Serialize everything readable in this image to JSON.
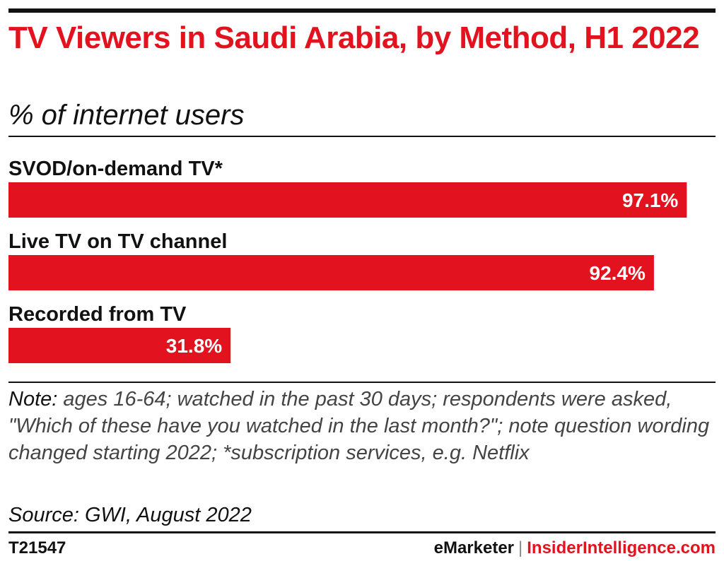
{
  "header": {
    "title": "TV Viewers in Saudi Arabia, by Method, H1 2022",
    "subtitle": "% of internet users"
  },
  "chart_data": {
    "type": "bar",
    "orientation": "horizontal",
    "categories": [
      "SVOD/on-demand TV*",
      "Live TV on TV channel",
      "Recorded from TV"
    ],
    "values": [
      97.1,
      92.4,
      31.8
    ],
    "value_labels": [
      "97.1%",
      "92.4%",
      "31.8%"
    ],
    "xlim": [
      0,
      100
    ],
    "grid": false,
    "bar_color": "#e2131e"
  },
  "footer": {
    "note_label": "Note:",
    "note_text": "ages 16-64; watched in the past 30 days; respondents were asked, \"Which of these have you watched in the last month?\"; note question wording changed starting 2022; *subscription services, e.g. Netflix",
    "source": "Source: GWI, August 2022",
    "chart_id": "T21547",
    "brand_primary": "eMarketer",
    "brand_separator": "|",
    "brand_secondary": "InsiderIntelligence.com"
  }
}
